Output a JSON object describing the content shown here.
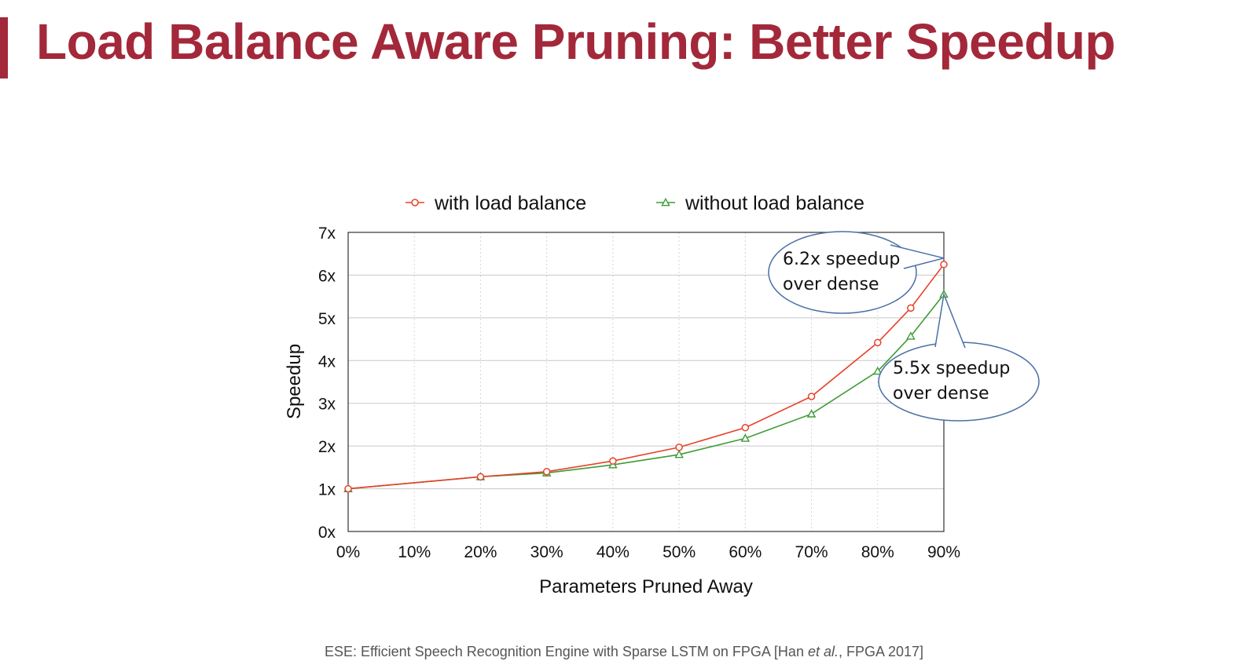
{
  "slide": {
    "title": "Load Balance Aware Pruning: Better Speedup",
    "citation": {
      "before": "ESE: Efficient Speech Recognition Engine with Sparse LSTM on FPGA [Han ",
      "italic": "et al.",
      "after": ", FPGA 2017]"
    },
    "accent_color": "#a3283a"
  },
  "chart_data": {
    "type": "line",
    "title": "",
    "xlabel": "Parameters Pruned Away",
    "ylabel": "Speedup",
    "x_ticks": [
      "0%",
      "10%",
      "20%",
      "30%",
      "40%",
      "50%",
      "60%",
      "70%",
      "80%",
      "90%"
    ],
    "y_ticks": [
      "0x",
      "1x",
      "2x",
      "3x",
      "4x",
      "5x",
      "6x",
      "7x"
    ],
    "xlim": [
      0,
      90
    ],
    "ylim": [
      0,
      7
    ],
    "grid": true,
    "legend_position": "top",
    "series": [
      {
        "name": "with load balance",
        "color": "#e8412a",
        "marker": "circle",
        "x": [
          0,
          20,
          30,
          40,
          50,
          60,
          70,
          80,
          85,
          90
        ],
        "values": [
          1.0,
          1.28,
          1.4,
          1.65,
          1.97,
          2.43,
          3.16,
          4.42,
          5.23,
          6.25
        ]
      },
      {
        "name": "without load balance",
        "color": "#3d9b35",
        "marker": "triangle",
        "x": [
          0,
          20,
          30,
          40,
          50,
          60,
          70,
          80,
          85,
          90
        ],
        "values": [
          1.0,
          1.28,
          1.37,
          1.56,
          1.8,
          2.18,
          2.75,
          3.75,
          4.57,
          5.55
        ]
      }
    ],
    "annotations": [
      {
        "lines": [
          "6.2x speedup",
          "over dense"
        ],
        "points_to": {
          "x": 90,
          "y": 6.25
        }
      },
      {
        "lines": [
          "5.5x speedup",
          "over dense"
        ],
        "points_to": {
          "x": 90,
          "y": 5.55
        }
      }
    ]
  }
}
